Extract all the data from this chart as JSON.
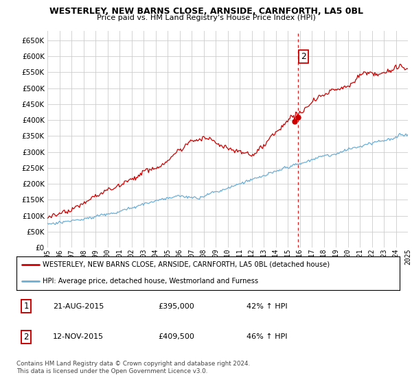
{
  "title": "WESTERLEY, NEW BARNS CLOSE, ARNSIDE, CARNFORTH, LA5 0BL",
  "subtitle": "Price paid vs. HM Land Registry's House Price Index (HPI)",
  "ylim": [
    0,
    680000
  ],
  "yticks": [
    0,
    50000,
    100000,
    150000,
    200000,
    250000,
    300000,
    350000,
    400000,
    450000,
    500000,
    550000,
    600000,
    650000
  ],
  "ytick_labels": [
    "£0",
    "£50K",
    "£100K",
    "£150K",
    "£200K",
    "£250K",
    "£300K",
    "£350K",
    "£400K",
    "£450K",
    "£500K",
    "£550K",
    "£600K",
    "£650K"
  ],
  "hpi_color": "#6baed6",
  "price_color": "#cc0000",
  "dashed_color": "#cc0000",
  "sale1_date": "21-AUG-2015",
  "sale1_price": "£395,000",
  "sale1_hpi": "42% ↑ HPI",
  "sale2_date": "12-NOV-2015",
  "sale2_price": "£409,500",
  "sale2_hpi": "46% ↑ HPI",
  "legend_line1": "WESTERLEY, NEW BARNS CLOSE, ARNSIDE, CARNFORTH, LA5 0BL (detached house)",
  "legend_line2": "HPI: Average price, detached house, Westmorland and Furness",
  "footnote": "Contains HM Land Registry data © Crown copyright and database right 2024.\nThis data is licensed under the Open Government Licence v3.0.",
  "background_color": "#ffffff",
  "grid_color": "#cccccc"
}
